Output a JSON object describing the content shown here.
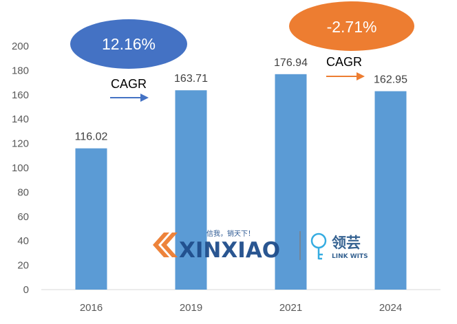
{
  "chart_data": {
    "type": "bar",
    "categories": [
      "2016",
      "2019",
      "2021",
      "2024"
    ],
    "values": [
      116.02,
      163.71,
      176.94,
      162.95
    ],
    "data_labels": [
      "116.02",
      "163.71",
      "176.94",
      "162.95"
    ],
    "ylim": [
      0,
      200
    ],
    "yticks": [
      "0",
      "20",
      "40",
      "60",
      "80",
      "100",
      "120",
      "140",
      "160",
      "180",
      "200"
    ],
    "grid": false,
    "bar_color": "#5b9bd5"
  },
  "annotations": {
    "cagr_1": {
      "value": "12.16%",
      "label": "CAGR",
      "color": "#4472c4",
      "from": "2016",
      "to": "2019"
    },
    "cagr_2": {
      "value": "-2.71%",
      "label": "CAGR",
      "color": "#ed7d31",
      "from": "2021",
      "to": "2024"
    }
  },
  "watermark": {
    "brand": "XINXIAO",
    "slogan": "信我，销天下！",
    "partner": "领芸",
    "partner_sub": "LINK WITS"
  }
}
